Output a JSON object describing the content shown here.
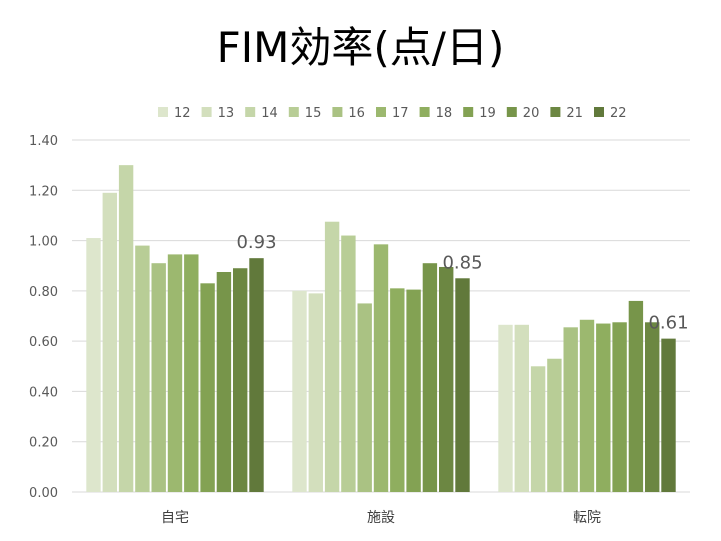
{
  "chart_data": {
    "type": "bar",
    "title": "FIM効率(点/日)",
    "categories": [
      "自宅",
      "施設",
      "転院"
    ],
    "ylim": [
      0,
      1.4
    ],
    "yticks": [
      "0.00",
      "0.20",
      "0.40",
      "0.60",
      "0.80",
      "1.00",
      "1.20",
      "1.40"
    ],
    "grid": true,
    "legend_position": "top",
    "series": [
      {
        "name": "12",
        "color": "#dde6cc",
        "values": [
          1.01,
          0.8,
          0.665
        ]
      },
      {
        "name": "13",
        "color": "#d3dfbd",
        "values": [
          1.19,
          0.79,
          0.665
        ]
      },
      {
        "name": "14",
        "color": "#c5d6a9",
        "values": [
          1.3,
          1.075,
          0.5
        ]
      },
      {
        "name": "15",
        "color": "#b8cd96",
        "values": [
          0.98,
          1.02,
          0.53
        ]
      },
      {
        "name": "16",
        "color": "#aac283",
        "values": [
          0.91,
          0.75,
          0.655
        ]
      },
      {
        "name": "17",
        "color": "#9cb86f",
        "values": [
          0.945,
          0.985,
          0.685
        ]
      },
      {
        "name": "18",
        "color": "#8fae5f",
        "values": [
          0.945,
          0.81,
          0.67
        ]
      },
      {
        "name": "19",
        "color": "#83a253",
        "values": [
          0.83,
          0.805,
          0.675
        ]
      },
      {
        "name": "20",
        "color": "#77954a",
        "values": [
          0.875,
          0.91,
          0.76
        ]
      },
      {
        "name": "21",
        "color": "#6c8742",
        "values": [
          0.89,
          0.895,
          0.675
        ]
      },
      {
        "name": "22",
        "color": "#61793b",
        "values": [
          0.93,
          0.85,
          0.61
        ]
      }
    ],
    "data_labels": [
      "0.93",
      "0.85",
      "0.61"
    ],
    "gridline_color": "#d9d9d9"
  }
}
